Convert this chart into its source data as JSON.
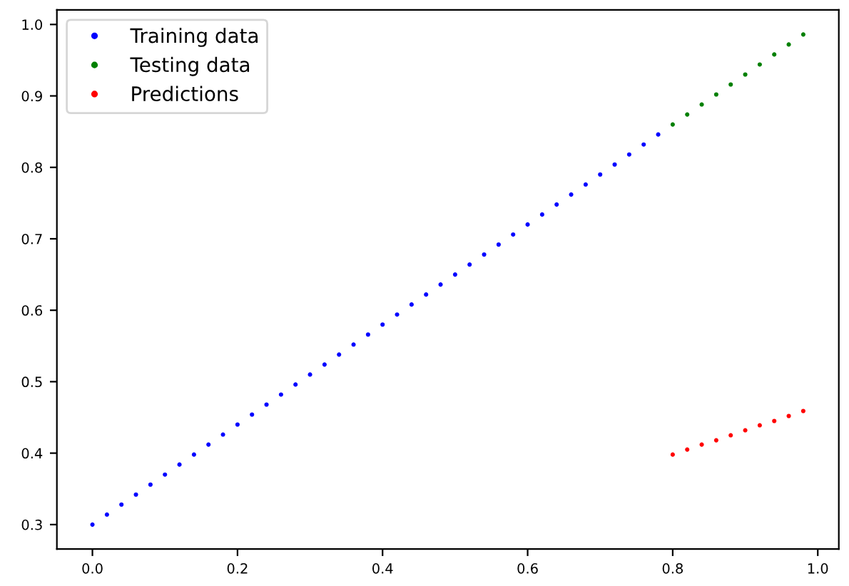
{
  "chart_data": {
    "type": "scatter",
    "marker": "circle",
    "legend": "top left",
    "grid": false,
    "xlim": [
      -0.049,
      1.029
    ],
    "ylim": [
      0.2657,
      1.0203
    ],
    "xticks": [
      {
        "value": 0,
        "label": "0.0"
      },
      0.2,
      0.4,
      0.6,
      0.8,
      {
        "value": 1,
        "label": "1.0"
      }
    ],
    "yticks": [
      0.3,
      0.4,
      0.5,
      0.6,
      0.7,
      0.8,
      0.9,
      {
        "value": 1,
        "label": "1.0"
      }
    ],
    "series": [
      {
        "name": "Training data",
        "color": "#0000ff",
        "x": [
          0,
          0.02,
          0.04,
          0.06,
          0.08,
          0.1,
          0.12,
          0.14,
          0.16,
          0.18,
          0.2,
          0.22,
          0.24,
          0.26,
          0.28,
          0.3,
          0.32,
          0.34,
          0.36,
          0.38,
          0.4,
          0.42,
          0.44,
          0.46,
          0.48,
          0.5,
          0.52,
          0.54,
          0.56,
          0.58,
          0.6,
          0.62,
          0.64,
          0.66,
          0.68,
          0.7,
          0.72,
          0.74,
          0.76,
          0.78
        ],
        "values": [
          0.3,
          0.314,
          0.328,
          0.342,
          0.356,
          0.37,
          0.384,
          0.398,
          0.412,
          0.426,
          0.44,
          0.454,
          0.468,
          0.482,
          0.496,
          0.51,
          0.524,
          0.538,
          0.552,
          0.566,
          0.58,
          0.594,
          0.608,
          0.622,
          0.636,
          0.65,
          0.664,
          0.678,
          0.692,
          0.706,
          0.72,
          0.734,
          0.748,
          0.762,
          0.776,
          0.79,
          0.804,
          0.818,
          0.832,
          0.846
        ]
      },
      {
        "name": "Testing data",
        "color": "#008000",
        "x": [
          0.8,
          0.82,
          0.84,
          0.86,
          0.88,
          0.9,
          0.92,
          0.94,
          0.96,
          0.98
        ],
        "values": [
          0.86,
          0.874,
          0.888,
          0.902,
          0.916,
          0.93,
          0.944,
          0.958,
          0.972,
          0.986
        ]
      },
      {
        "name": "Predictions",
        "color": "#ff0000",
        "x": [
          0.8,
          0.82,
          0.84,
          0.86,
          0.88,
          0.9,
          0.92,
          0.94,
          0.96,
          0.98
        ],
        "values": [
          0.398,
          0.405,
          0.412,
          0.418,
          0.425,
          0.432,
          0.439,
          0.445,
          0.452,
          0.459
        ]
      }
    ]
  }
}
